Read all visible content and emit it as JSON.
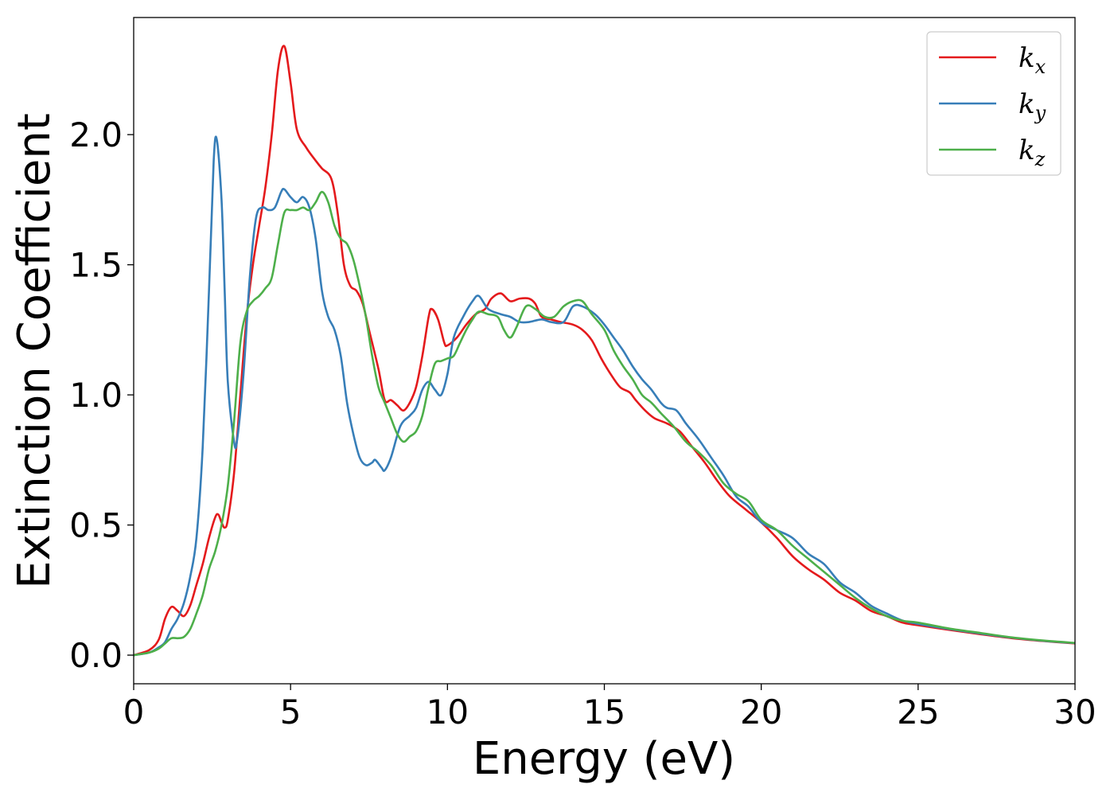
{
  "chart_data": {
    "type": "line",
    "title": "",
    "xlabel": "Energy (eV)",
    "ylabel": "Extinction Coefficient",
    "xlim": [
      0,
      30
    ],
    "ylim": [
      -0.11,
      2.45
    ],
    "xticks": [
      0,
      5,
      10,
      15,
      20,
      25,
      30
    ],
    "xtick_labels": [
      "0",
      "5",
      "10",
      "15",
      "20",
      "25",
      "30"
    ],
    "yticks": [
      0.0,
      0.5,
      1.0,
      1.5,
      2.0
    ],
    "ytick_labels": [
      "0.0",
      "0.5",
      "1.0",
      "1.5",
      "2.0"
    ],
    "grid": false,
    "legend": {
      "position": "top-right"
    },
    "series": [
      {
        "name": "k",
        "subscript": "x",
        "color": "#e41a1c",
        "points": [
          [
            0,
            0
          ],
          [
            0.5,
            0.02
          ],
          [
            0.8,
            0.06
          ],
          [
            1.0,
            0.14
          ],
          [
            1.2,
            0.185
          ],
          [
            1.4,
            0.17
          ],
          [
            1.6,
            0.15
          ],
          [
            1.8,
            0.19
          ],
          [
            2.0,
            0.27
          ],
          [
            2.2,
            0.35
          ],
          [
            2.4,
            0.45
          ],
          [
            2.6,
            0.53
          ],
          [
            2.7,
            0.54
          ],
          [
            2.8,
            0.51
          ],
          [
            2.9,
            0.49
          ],
          [
            3.0,
            0.52
          ],
          [
            3.2,
            0.7
          ],
          [
            3.4,
            1.0
          ],
          [
            3.6,
            1.3
          ],
          [
            3.8,
            1.5
          ],
          [
            4.0,
            1.65
          ],
          [
            4.2,
            1.8
          ],
          [
            4.4,
            2.0
          ],
          [
            4.6,
            2.25
          ],
          [
            4.8,
            2.34
          ],
          [
            5.0,
            2.2
          ],
          [
            5.2,
            2.02
          ],
          [
            5.5,
            1.95
          ],
          [
            5.8,
            1.9
          ],
          [
            6.0,
            1.87
          ],
          [
            6.3,
            1.83
          ],
          [
            6.5,
            1.7
          ],
          [
            6.7,
            1.5
          ],
          [
            6.9,
            1.42
          ],
          [
            7.1,
            1.4
          ],
          [
            7.3,
            1.35
          ],
          [
            7.5,
            1.25
          ],
          [
            7.8,
            1.1
          ],
          [
            8.0,
            0.98
          ],
          [
            8.2,
            0.98
          ],
          [
            8.4,
            0.96
          ],
          [
            8.6,
            0.94
          ],
          [
            8.8,
            0.97
          ],
          [
            9.0,
            1.03
          ],
          [
            9.2,
            1.15
          ],
          [
            9.4,
            1.3
          ],
          [
            9.5,
            1.33
          ],
          [
            9.7,
            1.29
          ],
          [
            9.9,
            1.2
          ],
          [
            10.0,
            1.19
          ],
          [
            10.3,
            1.22
          ],
          [
            10.6,
            1.27
          ],
          [
            10.9,
            1.31
          ],
          [
            11.2,
            1.33
          ],
          [
            11.4,
            1.37
          ],
          [
            11.7,
            1.39
          ],
          [
            12.0,
            1.36
          ],
          [
            12.3,
            1.37
          ],
          [
            12.6,
            1.37
          ],
          [
            12.8,
            1.35
          ],
          [
            13.0,
            1.3
          ],
          [
            13.3,
            1.29
          ],
          [
            13.6,
            1.28
          ],
          [
            14.0,
            1.27
          ],
          [
            14.3,
            1.25
          ],
          [
            14.6,
            1.21
          ],
          [
            14.9,
            1.14
          ],
          [
            15.2,
            1.08
          ],
          [
            15.5,
            1.03
          ],
          [
            15.8,
            1.01
          ],
          [
            16.0,
            0.98
          ],
          [
            16.3,
            0.94
          ],
          [
            16.6,
            0.91
          ],
          [
            17.0,
            0.89
          ],
          [
            17.4,
            0.86
          ],
          [
            17.8,
            0.8
          ],
          [
            18.2,
            0.74
          ],
          [
            18.6,
            0.67
          ],
          [
            19.0,
            0.61
          ],
          [
            19.5,
            0.56
          ],
          [
            20.0,
            0.51
          ],
          [
            20.5,
            0.45
          ],
          [
            21.0,
            0.38
          ],
          [
            21.5,
            0.33
          ],
          [
            22.0,
            0.29
          ],
          [
            22.5,
            0.24
          ],
          [
            23.0,
            0.21
          ],
          [
            23.5,
            0.17
          ],
          [
            24.0,
            0.15
          ],
          [
            24.5,
            0.125
          ],
          [
            25.0,
            0.115
          ],
          [
            26.0,
            0.097
          ],
          [
            27.0,
            0.08
          ],
          [
            28.0,
            0.065
          ],
          [
            29.0,
            0.054
          ],
          [
            30.0,
            0.045
          ]
        ]
      },
      {
        "name": "k",
        "subscript": "y",
        "color": "#377eb8",
        "points": [
          [
            0,
            0
          ],
          [
            0.5,
            0.01
          ],
          [
            0.8,
            0.03
          ],
          [
            1.0,
            0.05
          ],
          [
            1.2,
            0.1
          ],
          [
            1.4,
            0.14
          ],
          [
            1.6,
            0.2
          ],
          [
            1.8,
            0.3
          ],
          [
            2.0,
            0.45
          ],
          [
            2.2,
            0.8
          ],
          [
            2.4,
            1.4
          ],
          [
            2.55,
            1.9
          ],
          [
            2.65,
            1.98
          ],
          [
            2.8,
            1.75
          ],
          [
            2.9,
            1.4
          ],
          [
            3.0,
            1.05
          ],
          [
            3.2,
            0.82
          ],
          [
            3.3,
            0.83
          ],
          [
            3.5,
            1.08
          ],
          [
            3.7,
            1.45
          ],
          [
            3.9,
            1.68
          ],
          [
            4.1,
            1.72
          ],
          [
            4.3,
            1.71
          ],
          [
            4.5,
            1.72
          ],
          [
            4.7,
            1.78
          ],
          [
            4.8,
            1.79
          ],
          [
            5.0,
            1.76
          ],
          [
            5.2,
            1.74
          ],
          [
            5.4,
            1.76
          ],
          [
            5.6,
            1.72
          ],
          [
            5.8,
            1.6
          ],
          [
            6.0,
            1.4
          ],
          [
            6.2,
            1.3
          ],
          [
            6.4,
            1.25
          ],
          [
            6.6,
            1.15
          ],
          [
            6.8,
            0.97
          ],
          [
            7.0,
            0.85
          ],
          [
            7.2,
            0.76
          ],
          [
            7.4,
            0.73
          ],
          [
            7.6,
            0.74
          ],
          [
            7.7,
            0.75
          ],
          [
            7.9,
            0.72
          ],
          [
            8.0,
            0.71
          ],
          [
            8.2,
            0.76
          ],
          [
            8.5,
            0.88
          ],
          [
            8.8,
            0.92
          ],
          [
            9.0,
            0.95
          ],
          [
            9.2,
            1.02
          ],
          [
            9.4,
            1.05
          ],
          [
            9.6,
            1.02
          ],
          [
            9.8,
            1.0
          ],
          [
            10.0,
            1.08
          ],
          [
            10.2,
            1.22
          ],
          [
            10.5,
            1.3
          ],
          [
            10.8,
            1.36
          ],
          [
            11.0,
            1.38
          ],
          [
            11.3,
            1.33
          ],
          [
            11.7,
            1.31
          ],
          [
            12.0,
            1.3
          ],
          [
            12.3,
            1.28
          ],
          [
            12.6,
            1.28
          ],
          [
            13.0,
            1.29
          ],
          [
            13.3,
            1.28
          ],
          [
            13.7,
            1.28
          ],
          [
            14.0,
            1.34
          ],
          [
            14.3,
            1.34
          ],
          [
            14.7,
            1.31
          ],
          [
            15.0,
            1.27
          ],
          [
            15.3,
            1.22
          ],
          [
            15.6,
            1.17
          ],
          [
            15.9,
            1.11
          ],
          [
            16.2,
            1.06
          ],
          [
            16.5,
            1.02
          ],
          [
            16.8,
            0.97
          ],
          [
            17.0,
            0.95
          ],
          [
            17.3,
            0.94
          ],
          [
            17.6,
            0.89
          ],
          [
            18.0,
            0.83
          ],
          [
            18.4,
            0.76
          ],
          [
            18.8,
            0.69
          ],
          [
            19.2,
            0.61
          ],
          [
            19.6,
            0.57
          ],
          [
            20.0,
            0.51
          ],
          [
            20.5,
            0.48
          ],
          [
            21.0,
            0.45
          ],
          [
            21.5,
            0.39
          ],
          [
            22.0,
            0.35
          ],
          [
            22.5,
            0.28
          ],
          [
            23.0,
            0.24
          ],
          [
            23.5,
            0.19
          ],
          [
            24.0,
            0.16
          ],
          [
            24.5,
            0.133
          ],
          [
            25.0,
            0.12
          ],
          [
            26.0,
            0.1
          ],
          [
            27.0,
            0.083
          ],
          [
            28.0,
            0.067
          ],
          [
            29.0,
            0.055
          ],
          [
            30.0,
            0.046
          ]
        ]
      },
      {
        "name": "k",
        "subscript": "z",
        "color": "#4daf4a",
        "points": [
          [
            0,
            0
          ],
          [
            0.5,
            0.01
          ],
          [
            0.8,
            0.025
          ],
          [
            1.0,
            0.045
          ],
          [
            1.2,
            0.065
          ],
          [
            1.4,
            0.065
          ],
          [
            1.6,
            0.07
          ],
          [
            1.8,
            0.1
          ],
          [
            2.0,
            0.16
          ],
          [
            2.2,
            0.23
          ],
          [
            2.4,
            0.33
          ],
          [
            2.6,
            0.4
          ],
          [
            2.8,
            0.5
          ],
          [
            3.0,
            0.65
          ],
          [
            3.2,
            0.9
          ],
          [
            3.4,
            1.2
          ],
          [
            3.6,
            1.32
          ],
          [
            3.8,
            1.36
          ],
          [
            4.0,
            1.38
          ],
          [
            4.2,
            1.41
          ],
          [
            4.4,
            1.45
          ],
          [
            4.6,
            1.58
          ],
          [
            4.8,
            1.7
          ],
          [
            5.0,
            1.71
          ],
          [
            5.2,
            1.71
          ],
          [
            5.4,
            1.72
          ],
          [
            5.6,
            1.71
          ],
          [
            5.8,
            1.74
          ],
          [
            6.0,
            1.78
          ],
          [
            6.2,
            1.74
          ],
          [
            6.4,
            1.65
          ],
          [
            6.6,
            1.6
          ],
          [
            6.8,
            1.58
          ],
          [
            7.0,
            1.52
          ],
          [
            7.2,
            1.42
          ],
          [
            7.4,
            1.3
          ],
          [
            7.6,
            1.15
          ],
          [
            7.8,
            1.03
          ],
          [
            8.0,
            0.97
          ],
          [
            8.2,
            0.91
          ],
          [
            8.4,
            0.85
          ],
          [
            8.6,
            0.82
          ],
          [
            8.8,
            0.84
          ],
          [
            9.0,
            0.86
          ],
          [
            9.2,
            0.92
          ],
          [
            9.4,
            1.03
          ],
          [
            9.6,
            1.12
          ],
          [
            9.8,
            1.13
          ],
          [
            10.0,
            1.14
          ],
          [
            10.2,
            1.15
          ],
          [
            10.4,
            1.2
          ],
          [
            10.6,
            1.25
          ],
          [
            10.8,
            1.29
          ],
          [
            11.0,
            1.32
          ],
          [
            11.3,
            1.31
          ],
          [
            11.6,
            1.3
          ],
          [
            11.8,
            1.25
          ],
          [
            12.0,
            1.22
          ],
          [
            12.2,
            1.26
          ],
          [
            12.5,
            1.34
          ],
          [
            12.8,
            1.33
          ],
          [
            13.1,
            1.3
          ],
          [
            13.4,
            1.3
          ],
          [
            13.7,
            1.34
          ],
          [
            14.0,
            1.36
          ],
          [
            14.3,
            1.36
          ],
          [
            14.6,
            1.31
          ],
          [
            15.0,
            1.25
          ],
          [
            15.3,
            1.17
          ],
          [
            15.6,
            1.11
          ],
          [
            15.9,
            1.06
          ],
          [
            16.2,
            1.0
          ],
          [
            16.5,
            0.97
          ],
          [
            16.8,
            0.93
          ],
          [
            17.2,
            0.88
          ],
          [
            17.6,
            0.82
          ],
          [
            18.0,
            0.78
          ],
          [
            18.4,
            0.73
          ],
          [
            18.8,
            0.66
          ],
          [
            19.2,
            0.62
          ],
          [
            19.6,
            0.59
          ],
          [
            20.0,
            0.52
          ],
          [
            20.5,
            0.48
          ],
          [
            21.0,
            0.42
          ],
          [
            21.5,
            0.37
          ],
          [
            22.0,
            0.32
          ],
          [
            22.5,
            0.27
          ],
          [
            23.0,
            0.22
          ],
          [
            23.5,
            0.18
          ],
          [
            24.0,
            0.15
          ],
          [
            24.5,
            0.132
          ],
          [
            25.0,
            0.125
          ],
          [
            26.0,
            0.102
          ],
          [
            27.0,
            0.085
          ],
          [
            28.0,
            0.068
          ],
          [
            29.0,
            0.056
          ],
          [
            30.0,
            0.047
          ]
        ]
      }
    ]
  }
}
